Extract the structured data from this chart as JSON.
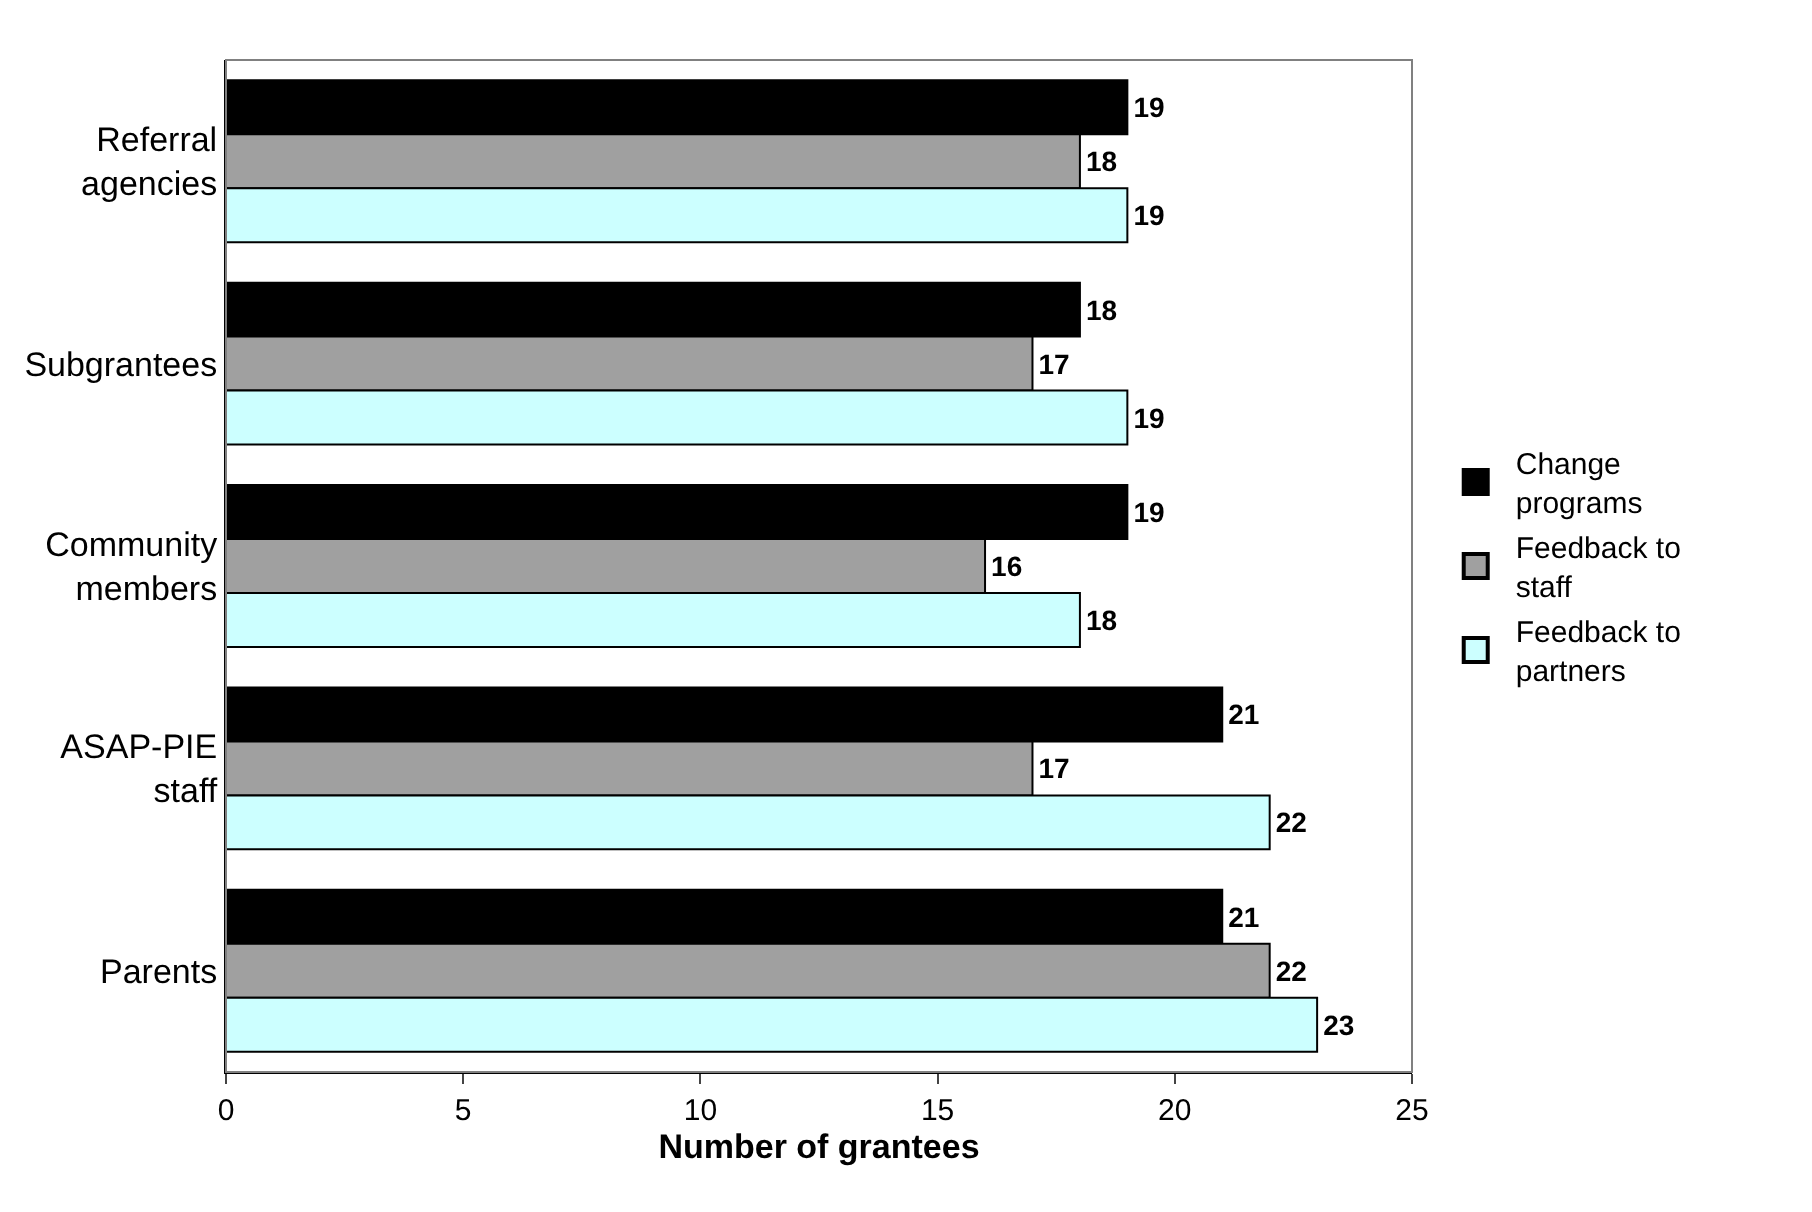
{
  "chart_data": {
    "type": "bar",
    "orientation": "horizontal",
    "xlabel": "Number of grantees",
    "categories": [
      "Referral agencies",
      "Subgrantees",
      "Community members",
      "ASAP-PIE staff",
      "Parents"
    ],
    "series": [
      {
        "name": "Change programs",
        "color": "#000000",
        "values": [
          19,
          18,
          19,
          21,
          21
        ]
      },
      {
        "name": "Feedback to staff",
        "color": "#a0a0a0",
        "values": [
          18,
          17,
          16,
          17,
          22
        ]
      },
      {
        "name": "Feedback to partners",
        "color": "#ccffff",
        "values": [
          19,
          19,
          18,
          22,
          23
        ]
      }
    ],
    "xlim": [
      0,
      25
    ],
    "xticks": [
      0,
      5,
      10,
      15,
      20,
      25
    ],
    "legend": "right",
    "data_labels": true
  }
}
